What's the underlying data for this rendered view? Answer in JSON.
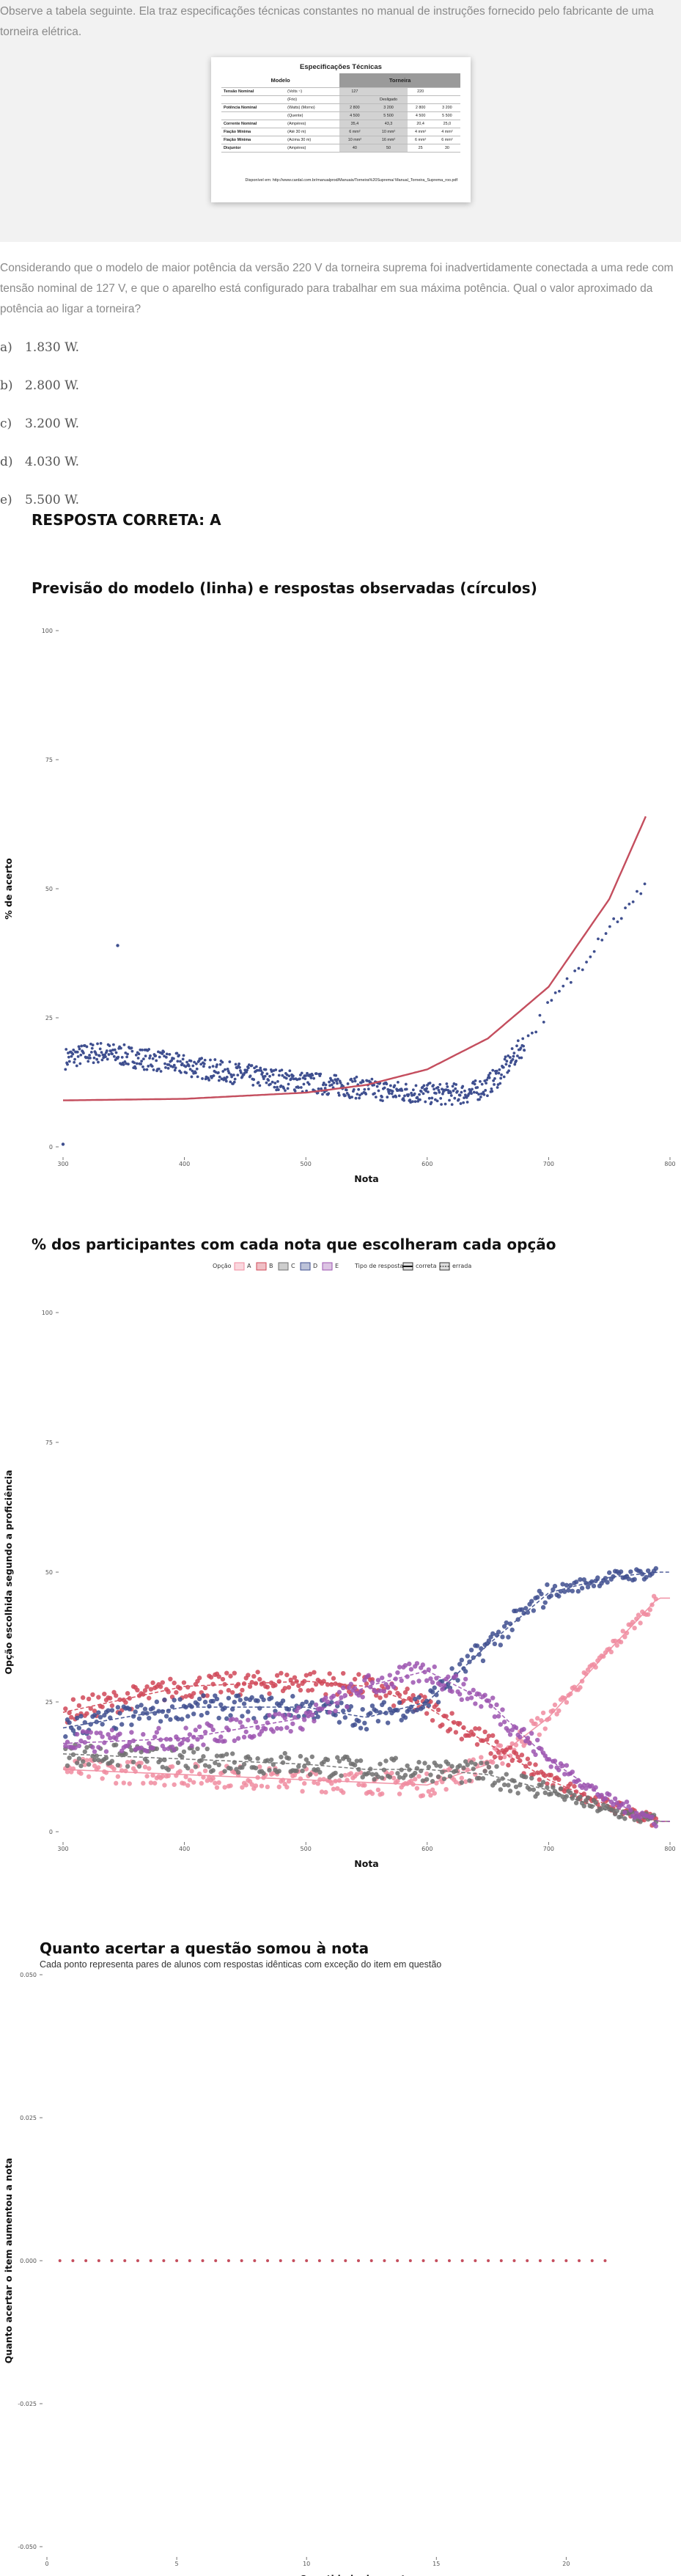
{
  "intro": {
    "text": "Observe a tabela seguinte. Ela traz especificações técnicas constantes no manual de instruções fornecido pelo fabricante de uma torneira elétrica."
  },
  "spec_table": {
    "title": "Especificações Técnicas",
    "col_modelo": "Modelo",
    "col_torneira": "Torneira",
    "rows": [
      {
        "label": "Tensão Nominal",
        "unit": "(Volts ~)",
        "v1": "127",
        "v2": "",
        "v3": "220",
        "v4": ""
      },
      {
        "label": "",
        "unit": "(Frio)",
        "v1": "",
        "v2": "Desligado",
        "v3": "",
        "v4": ""
      },
      {
        "label": "Potência Nominal",
        "unit": "(Watts)  (Morno)",
        "v1": "2 800",
        "v2": "3 200",
        "v3": "2 800",
        "v4": "3 200"
      },
      {
        "label": "",
        "unit": "(Quente)",
        "v1": "4 500",
        "v2": "5 500",
        "v3": "4 500",
        "v4": "5 500"
      },
      {
        "label": "Corrente Nominal",
        "unit": "(Ampères)",
        "v1": "35,4",
        "v2": "43,3",
        "v3": "20,4",
        "v4": "25,0"
      },
      {
        "label": "Fiação Mínima",
        "unit": "(Até 30 m)",
        "v1": "6 mm²",
        "v2": "10 mm²",
        "v3": "4 mm²",
        "v4": "4 mm²"
      },
      {
        "label": "Fiação Mínima",
        "unit": "(Acima 30 m)",
        "v1": "10 mm²",
        "v2": "16 mm²",
        "v3": "6 mm²",
        "v4": "6 mm²"
      },
      {
        "label": "Disjuntor",
        "unit": "(Ampères)",
        "v1": "40",
        "v2": "50",
        "v3": "25",
        "v4": "30"
      }
    ],
    "footnote": "Disponível em: http://www.cardal.com.br/manualprod/Manuais/Torneira%20Suprema/ Manual_Torneira_Suprema_roo.pdf"
  },
  "question": {
    "text": "Considerando que o modelo de maior potência da versão 220 V da torneira suprema foi inadvertidamente conectada a uma rede com tensão nominal de 127 V, e que o aparelho está configurado para trabalhar em sua máxima potência. Qual o valor aproximado da potência ao ligar a torneira?"
  },
  "options": [
    {
      "letter": "a)",
      "text": "1.830 W."
    },
    {
      "letter": "b)",
      "text": "2.800 W."
    },
    {
      "letter": "c)",
      "text": "3.200 W."
    },
    {
      "letter": "d)",
      "text": "4.030 W."
    },
    {
      "letter": "e)",
      "text": "5.500 W."
    }
  ],
  "answer": {
    "text": "RESPOSTA CORRETA: A"
  },
  "chart1": {
    "title": "Previsão do modelo (linha) e respostas observadas (círculos)"
  },
  "chart2": {
    "title": "% dos participantes com cada nota que escolheram cada opção",
    "legend_opcao_label": "Opção",
    "legend_tipo_label": "Tipo de resposta",
    "legend_correta": "correta",
    "legend_errada": "errada"
  },
  "chart3": {
    "title": "Quanto acertar a questão somou à nota",
    "subtitle": "Cada ponto representa pares de alunos com respostas idênticas com exceção do item em questão"
  },
  "chart_data": [
    {
      "type": "scatter",
      "title": "Previsão do modelo (linha) e respostas observadas (círculos)",
      "xlabel": "Nota",
      "ylabel": "% de acerto",
      "xlim": [
        300,
        800
      ],
      "ylim": [
        0,
        100
      ],
      "x_ticks": [
        300,
        400,
        500,
        600,
        700,
        800
      ],
      "y_ticks": [
        0,
        25,
        50,
        75,
        100
      ],
      "grid": false,
      "colors": {
        "points": "#3f4f8f",
        "line": "#c44e5e"
      },
      "model_line": {
        "x": [
          300,
          400,
          500,
          550,
          600,
          650,
          700,
          750,
          780
        ],
        "y": [
          9,
          9.3,
          10.5,
          12,
          15,
          21,
          31,
          48,
          64
        ]
      },
      "observed": {
        "x": [
          300,
          310,
          320,
          330,
          340,
          350,
          360,
          380,
          400,
          420,
          440,
          460,
          480,
          500,
          520,
          540,
          560,
          580,
          600,
          610,
          620,
          630,
          640,
          650,
          660,
          670,
          680,
          690,
          700,
          710,
          720,
          730,
          740,
          750,
          760,
          770,
          780
        ],
        "y": [
          17,
          17.5,
          18,
          18.3,
          18,
          17.7,
          17.3,
          16.6,
          15.8,
          15,
          14.3,
          13.6,
          13,
          12.5,
          12,
          11.5,
          11,
          10.6,
          10.3,
          10.2,
          10.2,
          10.3,
          10.8,
          12,
          14,
          17,
          20,
          23.5,
          27,
          30,
          33,
          36.5,
          40,
          43,
          45,
          47,
          52
        ]
      },
      "outliers": [
        {
          "x": 300,
          "y": 0.5
        },
        {
          "x": 345,
          "y": 39
        }
      ]
    },
    {
      "type": "scatter",
      "title": "% dos participantes com cada nota que escolheram cada opção",
      "xlabel": "Nota",
      "ylabel": "Opção escolhida segundo a proficiência",
      "xlim": [
        300,
        800
      ],
      "ylim": [
        0,
        100
      ],
      "x_ticks": [
        300,
        400,
        500,
        600,
        700,
        800
      ],
      "y_ticks": [
        0,
        25,
        50,
        75,
        100
      ],
      "legend": "top",
      "legend_entries": [
        "A",
        "B",
        "C",
        "D",
        "E"
      ],
      "legend_position": "top",
      "series": [
        {
          "name": "A",
          "color": "#f08ca0",
          "answer_type": "correta",
          "x": [
            300,
            400,
            500,
            550,
            600,
            650,
            700,
            750,
            790
          ],
          "y": [
            12,
            11,
            10,
            9.5,
            9,
            13,
            22,
            35,
            45
          ]
        },
        {
          "name": "B",
          "color": "#d04858",
          "answer_type": "errada",
          "x": [
            300,
            400,
            500,
            550,
            600,
            650,
            700,
            750,
            790
          ],
          "y": [
            23,
            28,
            29,
            28,
            24,
            17,
            10,
            5,
            2
          ]
        },
        {
          "name": "C",
          "color": "#707070",
          "answer_type": "errada",
          "x": [
            300,
            400,
            500,
            550,
            600,
            650,
            700,
            750,
            790
          ],
          "y": [
            15,
            14,
            13,
            12,
            12,
            11,
            8,
            4,
            2
          ]
        },
        {
          "name": "D",
          "color": "#3f4f8f",
          "answer_type": "errada",
          "x": [
            300,
            400,
            500,
            550,
            600,
            650,
            700,
            750,
            790
          ],
          "y": [
            20,
            24,
            24,
            22,
            25,
            36,
            46,
            49,
            50
          ]
        },
        {
          "name": "E",
          "color": "#9c55b0",
          "answer_type": "errada",
          "x": [
            300,
            400,
            500,
            550,
            600,
            650,
            700,
            750,
            790
          ],
          "y": [
            17,
            18,
            22,
            28,
            31,
            25,
            14,
            6,
            2
          ]
        }
      ]
    },
    {
      "type": "scatter",
      "title": "Quanto acertar a questão somou à nota",
      "subtitle": "Cada ponto representa pares de alunos com respostas idênticas com exceção do item em questão",
      "xlabel": "Quantidade de acertos",
      "ylabel": "Quanto acertar o item aumentou a nota",
      "xlim": [
        0,
        24
      ],
      "ylim": [
        -0.05,
        0.05
      ],
      "x_ticks": [
        0,
        5,
        10,
        15,
        20
      ],
      "y_ticks": [
        -0.05,
        -0.025,
        0,
        0.025,
        0.05
      ],
      "y_tick_labels": [
        "-0.050",
        "-0.025",
        "0.000",
        "0.025",
        "0.050"
      ],
      "colors": {
        "points": "#c44e5e"
      },
      "points": {
        "x": [
          0.5,
          1,
          1.5,
          2,
          2.5,
          3,
          3.5,
          4,
          4.5,
          5,
          5.5,
          6,
          6.5,
          7,
          7.5,
          8,
          8.5,
          9,
          9.5,
          10,
          10.5,
          11,
          11.5,
          12,
          12.5,
          13,
          13.5,
          14,
          14.5,
          15,
          15.5,
          16,
          16.5,
          17,
          17.5,
          18,
          18.5,
          19,
          19.5,
          20,
          20.5,
          21,
          21.5
        ],
        "y": [
          0,
          0,
          0,
          0,
          0,
          0,
          0,
          0,
          0,
          0,
          0,
          0,
          0,
          0,
          0,
          0,
          0,
          0,
          0,
          0,
          0,
          0,
          0,
          0,
          0,
          0,
          0,
          0,
          0,
          0,
          0,
          0,
          0,
          0,
          0,
          0,
          0,
          0,
          0,
          0,
          0,
          0,
          0
        ]
      }
    }
  ]
}
